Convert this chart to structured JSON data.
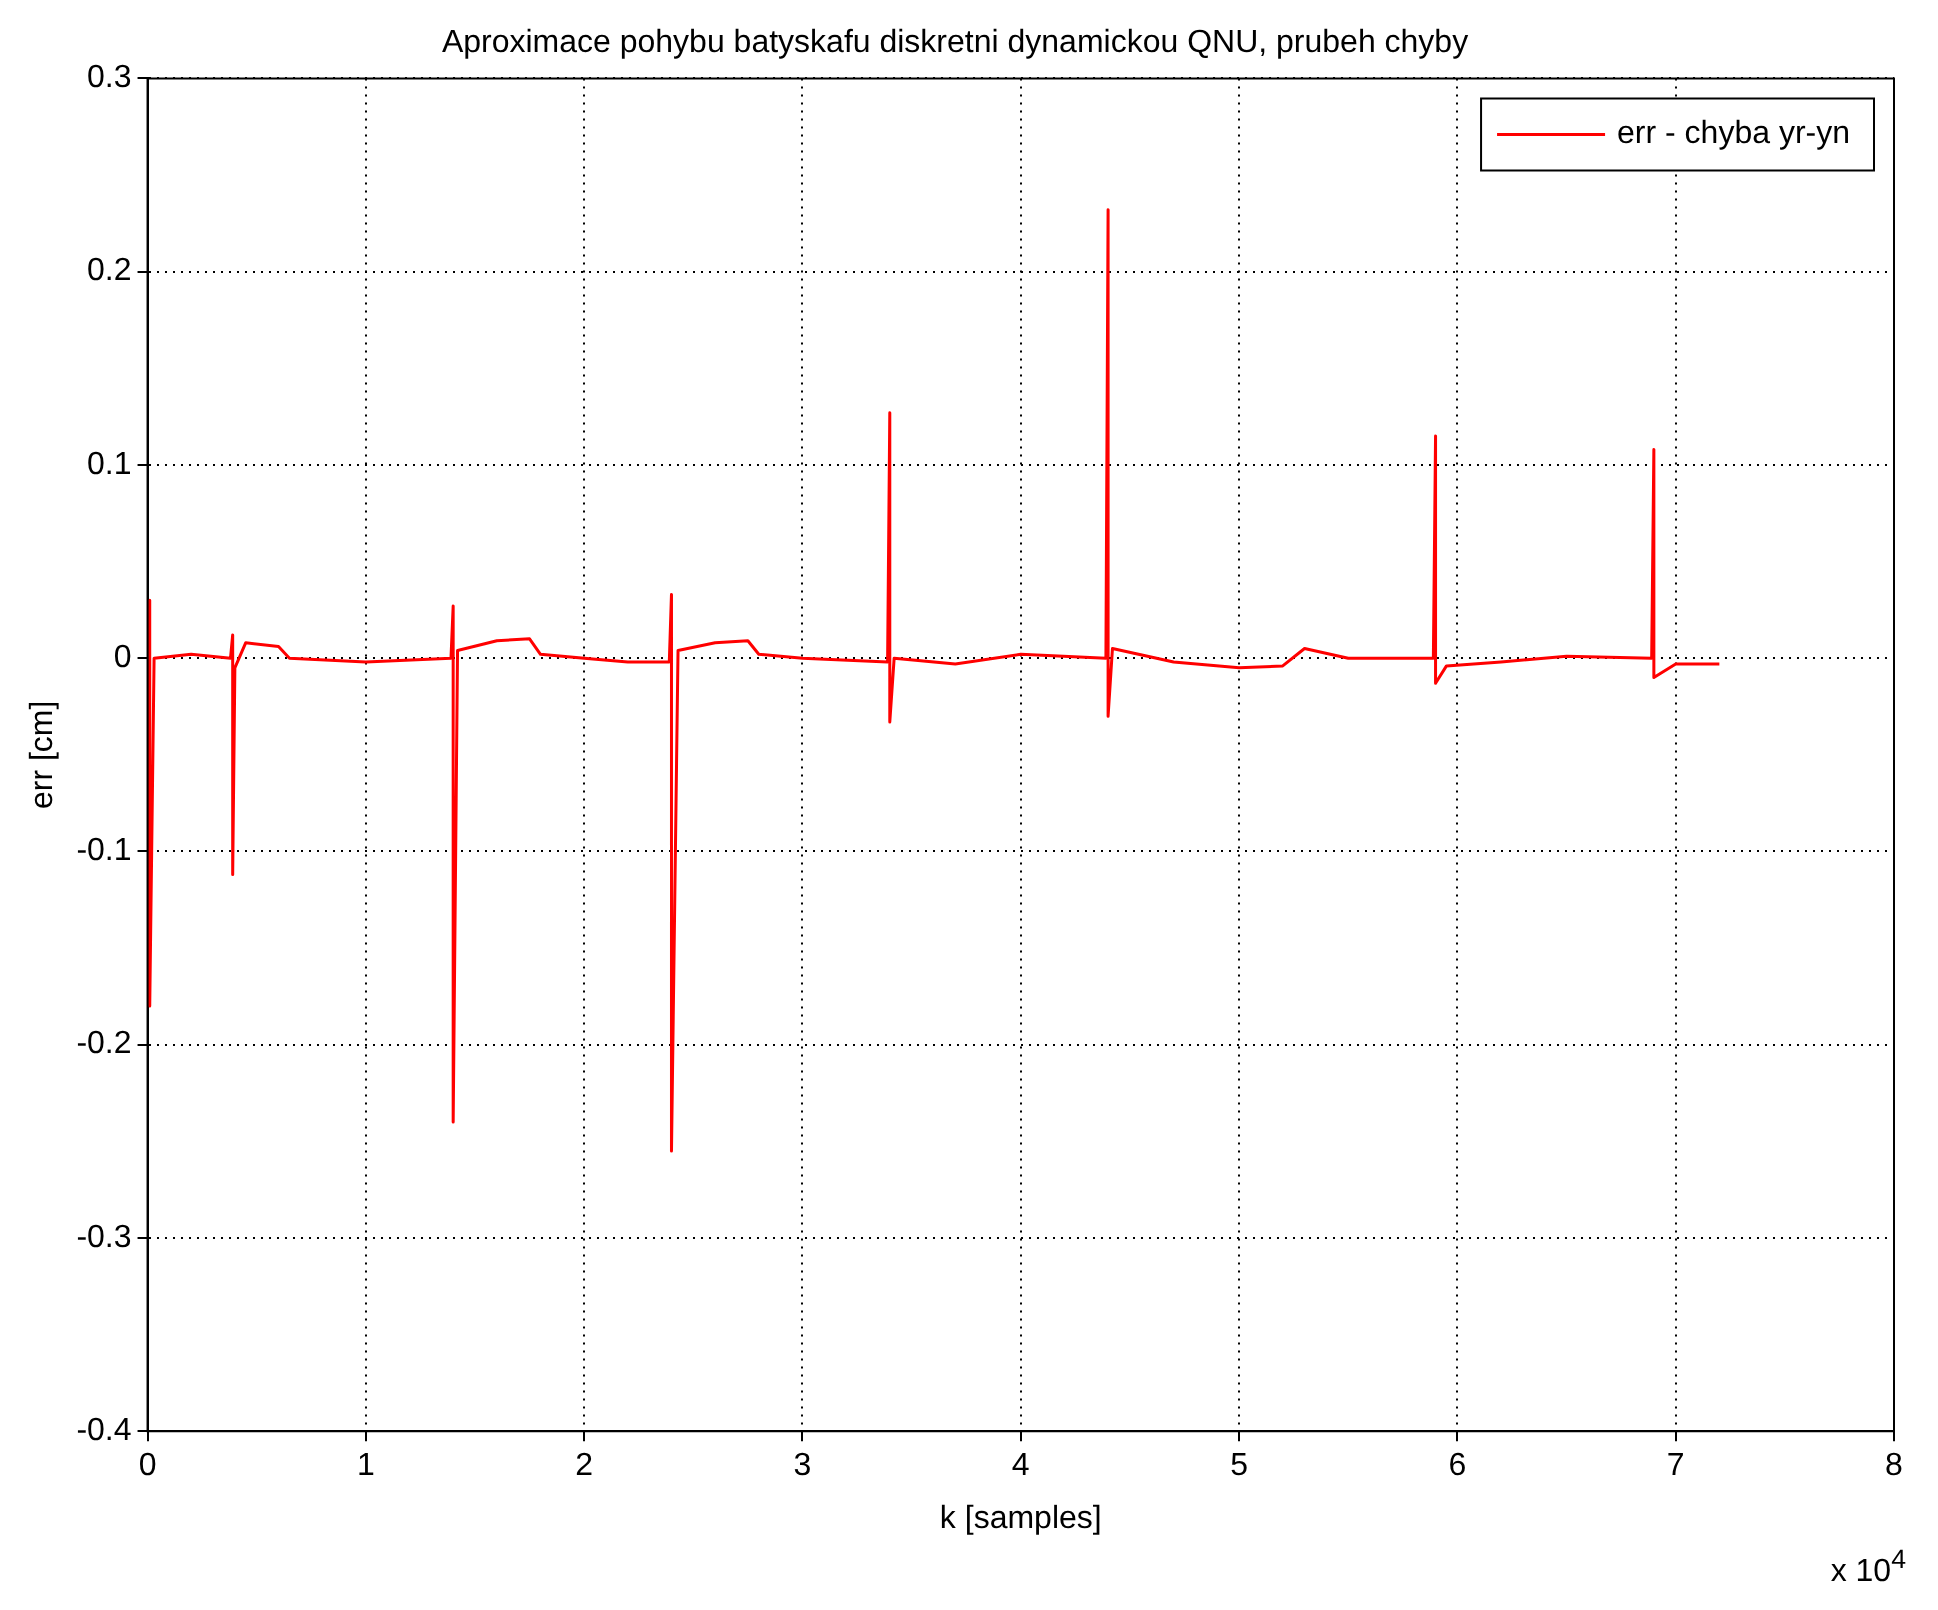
{
  "chart_data": {
    "type": "line",
    "title": "Aproximace pohybu batyskafu diskretni dynamickou QNU, prubeh chyby",
    "xlabel": "k [samples]",
    "ylabel": "err [cm]",
    "annotations": [
      "x 10$^{4}$"
    ],
    "xlim": [
      0,
      8
    ],
    "xticks": [
      0,
      1,
      2,
      3,
      4,
      5,
      6,
      7,
      8
    ],
    "ylim": [
      -0.4,
      0.3
    ],
    "yticks": [
      -0.4,
      -0.3,
      -0.2,
      -0.1,
      0,
      0.1,
      0.2,
      0.3
    ],
    "grid": true,
    "legend": "top right",
    "marker": "none",
    "line_style": "solid",
    "series": [
      {
        "name": "err - chyba yr-yn",
        "color": "#ff0000",
        "x": [
          0.01,
          0.01,
          0.03,
          0.2,
          0.38,
          0.39,
          0.39,
          0.4,
          0.45,
          0.6,
          0.65,
          1.0,
          1.39,
          1.4,
          1.4,
          1.42,
          1.6,
          1.75,
          1.8,
          2.0,
          2.2,
          2.39,
          2.4,
          2.4,
          2.43,
          2.6,
          2.75,
          2.8,
          3.0,
          3.39,
          3.4,
          3.4,
          3.42,
          3.7,
          4.0,
          4.39,
          4.4,
          4.4,
          4.42,
          4.7,
          5.0,
          5.2,
          5.3,
          5.5,
          5.89,
          5.9,
          5.9,
          5.95,
          6.2,
          6.5,
          6.89,
          6.9,
          6.9,
          7.0,
          7.2
        ],
        "values": [
          0.03,
          -0.18,
          0,
          0.002,
          0,
          0.012,
          -0.112,
          -0.005,
          0.008,
          0.006,
          0,
          -0.002,
          0,
          0.027,
          -0.24,
          0.004,
          0.009,
          0.01,
          0.002,
          0,
          -0.002,
          -0.002,
          0.033,
          -0.255,
          0.004,
          0.008,
          0.009,
          0.002,
          0,
          -0.002,
          0.127,
          -0.033,
          0,
          -0.003,
          0.002,
          0,
          0.232,
          -0.03,
          0.005,
          -0.002,
          -0.005,
          -0.004,
          0.005,
          0,
          0,
          0.115,
          -0.013,
          -0.004,
          -0.002,
          0.001,
          0,
          0.108,
          -0.01,
          -0.003,
          -0.003
        ]
      }
    ]
  }
}
